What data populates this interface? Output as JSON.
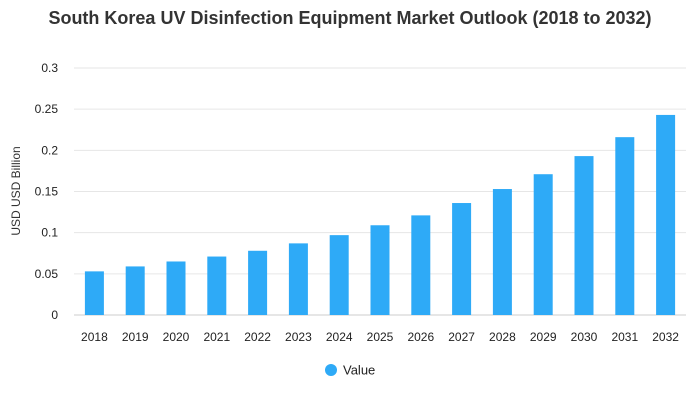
{
  "chart_data": {
    "type": "bar",
    "title": "South Korea UV Disinfection Equipment Market Outlook (2018 to 2032)",
    "xlabel": "",
    "ylabel": "USD USD Billion",
    "ylim": [
      0,
      0.3
    ],
    "yticks": [
      "0",
      "0.05",
      "0.1",
      "0.15",
      "0.2",
      "0.25",
      "0.3"
    ],
    "grid": true,
    "legend_position": "bottom-center",
    "categories": [
      "2018",
      "2019",
      "2020",
      "2021",
      "2022",
      "2023",
      "2024",
      "2025",
      "2026",
      "2027",
      "2028",
      "2029",
      "2030",
      "2031",
      "2032"
    ],
    "series": [
      {
        "name": "Value",
        "color": "#2eaaf7",
        "values": [
          0.053,
          0.059,
          0.065,
          0.071,
          0.078,
          0.087,
          0.097,
          0.109,
          0.121,
          0.136,
          0.153,
          0.171,
          0.193,
          0.216,
          0.243
        ]
      }
    ]
  }
}
